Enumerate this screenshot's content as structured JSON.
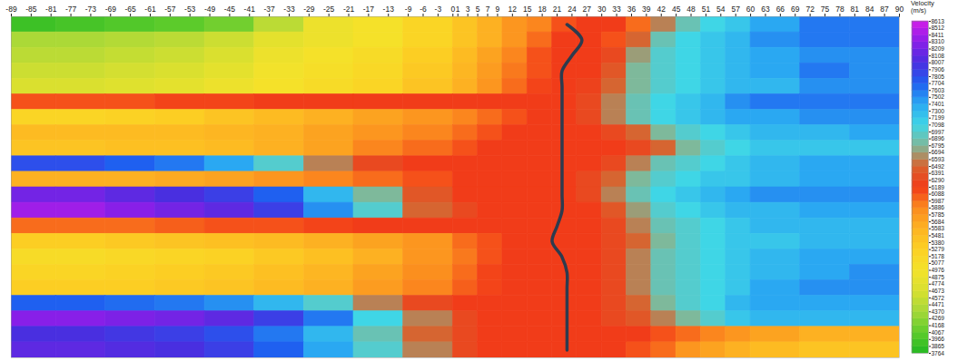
{
  "chart_data": {
    "type": "heatmap",
    "tick_labels": "x",
    "xlim": [
      -89,
      90
    ],
    "xticks": [
      -89,
      -85,
      -81,
      -77,
      -73,
      -69,
      -65,
      -61,
      -57,
      -53,
      -49,
      -45,
      -41,
      -37,
      -33,
      -29,
      -25,
      -21,
      -17,
      -13,
      -9,
      -6,
      -3,
      0,
      1,
      3,
      5,
      7,
      9,
      12,
      15,
      18,
      21,
      24,
      27,
      30,
      33,
      36,
      39,
      42,
      45,
      48,
      51,
      54,
      57,
      60,
      63,
      66,
      69,
      72,
      75,
      78,
      81,
      84,
      87,
      90
    ],
    "x_edges": [
      -89,
      -80,
      -70,
      -60,
      -50,
      -40,
      -30,
      -20,
      -10,
      0,
      5,
      10,
      15,
      20,
      25,
      30,
      35,
      40,
      45,
      50,
      55,
      60,
      70,
      80,
      90
    ],
    "velocity": [
      [
        3900,
        3950,
        4000,
        4050,
        4150,
        4500,
        4900,
        5000,
        5200,
        5400,
        5600,
        5800,
        5900,
        6100,
        6200,
        6200,
        6000,
        6600,
        6900,
        7100,
        7200,
        7400,
        7600,
        7600
      ],
      [
        4400,
        4400,
        4450,
        4500,
        4600,
        4800,
        4900,
        5000,
        5200,
        5400,
        5600,
        5800,
        6000,
        6200,
        6200,
        6100,
        6500,
        6900,
        7100,
        7200,
        7300,
        7500,
        7600,
        7600
      ],
      [
        4500,
        4500,
        4550,
        4600,
        4700,
        4900,
        5000,
        5100,
        5300,
        5500,
        5700,
        5900,
        6100,
        6200,
        6200,
        6300,
        6700,
        7000,
        7100,
        7200,
        7300,
        7400,
        7500,
        7500
      ],
      [
        4600,
        4600,
        4650,
        4700,
        4800,
        4950,
        5050,
        5150,
        5350,
        5550,
        5750,
        5950,
        6100,
        6200,
        6200,
        6400,
        6800,
        7000,
        7100,
        7200,
        7300,
        7400,
        7600,
        7500
      ],
      [
        4700,
        4700,
        4750,
        4800,
        4900,
        5000,
        5100,
        5200,
        5400,
        5600,
        5800,
        6000,
        6150,
        6200,
        6250,
        6500,
        6800,
        7000,
        7100,
        7200,
        7300,
        7300,
        7500,
        7500
      ],
      [
        6100,
        6100,
        6100,
        6150,
        6150,
        6200,
        6200,
        6200,
        6200,
        6200,
        6200,
        6200,
        6200,
        6200,
        6300,
        6600,
        6900,
        7100,
        7200,
        7300,
        7500,
        7600,
        7600,
        7600
      ],
      [
        5200,
        5200,
        5250,
        5300,
        5400,
        5500,
        5600,
        5700,
        5800,
        5900,
        6000,
        6100,
        6200,
        6200,
        6300,
        6600,
        6900,
        7100,
        7200,
        7300,
        7400,
        7400,
        7500,
        7500
      ],
      [
        5500,
        5500,
        5500,
        5500,
        5550,
        5600,
        5700,
        5800,
        5900,
        6000,
        6100,
        6200,
        6200,
        6200,
        6200,
        6300,
        6500,
        6800,
        7000,
        7100,
        7200,
        7300,
        7300,
        7400
      ],
      [
        5400,
        5400,
        5450,
        5450,
        5500,
        5600,
        5700,
        5900,
        6000,
        6100,
        6200,
        6200,
        6200,
        6200,
        6200,
        6200,
        6300,
        6500,
        6800,
        7000,
        7100,
        7200,
        7200,
        7200
      ],
      [
        7800,
        7800,
        7700,
        7600,
        7400,
        7000,
        6600,
        6300,
        6200,
        6200,
        6200,
        6200,
        6200,
        6200,
        6200,
        6300,
        6600,
        6900,
        7000,
        7100,
        7200,
        7300,
        7400,
        7400
      ],
      [
        5600,
        5600,
        5600,
        5650,
        5700,
        5800,
        5900,
        6000,
        6100,
        6200,
        6200,
        6200,
        6200,
        6200,
        6300,
        6500,
        6800,
        7000,
        7100,
        7200,
        7200,
        7300,
        7400,
        7400
      ],
      [
        8200,
        8200,
        8100,
        8000,
        7900,
        7700,
        7300,
        6800,
        6400,
        6200,
        6200,
        6200,
        6200,
        6200,
        6300,
        6600,
        6900,
        7100,
        7200,
        7300,
        7400,
        7500,
        7500,
        7500
      ],
      [
        8400,
        8400,
        8300,
        8200,
        8100,
        7900,
        7500,
        7000,
        6500,
        6300,
        6200,
        6200,
        6200,
        6200,
        6200,
        6400,
        6700,
        7000,
        7100,
        7200,
        7300,
        7300,
        7400,
        7400
      ],
      [
        6000,
        6000,
        6000,
        6050,
        6100,
        6100,
        6150,
        6200,
        6200,
        6200,
        6200,
        6200,
        6200,
        6200,
        6200,
        6300,
        6600,
        6900,
        7000,
        7100,
        7200,
        7300,
        7300,
        7300
      ],
      [
        5300,
        5300,
        5350,
        5400,
        5450,
        5500,
        5600,
        5700,
        5800,
        6000,
        6100,
        6200,
        6200,
        6200,
        6200,
        6300,
        6500,
        6800,
        7000,
        7100,
        7200,
        7200,
        7300,
        7300
      ],
      [
        5100,
        5100,
        5150,
        5200,
        5250,
        5350,
        5450,
        5600,
        5800,
        5950,
        6100,
        6200,
        6200,
        6200,
        6200,
        6300,
        6600,
        6900,
        7000,
        7100,
        7200,
        7300,
        7400,
        7400
      ],
      [
        5200,
        5200,
        5250,
        5300,
        5350,
        5450,
        5550,
        5700,
        5850,
        6000,
        6150,
        6200,
        6200,
        6200,
        6200,
        6300,
        6600,
        6900,
        7000,
        7100,
        7200,
        7300,
        7400,
        7500
      ],
      [
        5300,
        5300,
        5300,
        5350,
        5400,
        5500,
        5600,
        5750,
        5900,
        6050,
        6150,
        6200,
        6200,
        6200,
        6200,
        6300,
        6600,
        6900,
        7000,
        7100,
        7200,
        7400,
        7500,
        7500
      ],
      [
        7700,
        7700,
        7650,
        7600,
        7500,
        7300,
        7000,
        6600,
        6300,
        6200,
        6200,
        6200,
        6200,
        6200,
        6200,
        6300,
        6500,
        6800,
        7000,
        7100,
        7300,
        7400,
        7400,
        7400
      ],
      [
        8300,
        8300,
        8250,
        8200,
        8100,
        7900,
        7600,
        7100,
        6600,
        6300,
        6200,
        6200,
        6200,
        6200,
        6200,
        6300,
        6400,
        6600,
        6800,
        7000,
        7200,
        7300,
        7300,
        7300
      ],
      [
        8000,
        8000,
        7950,
        7900,
        7800,
        7600,
        7300,
        6900,
        6500,
        6300,
        6200,
        6200,
        6200,
        6200,
        6200,
        6200,
        6200,
        6100,
        6000,
        5900,
        5800,
        5700,
        5600,
        5600
      ],
      [
        8100,
        8100,
        8050,
        8000,
        7900,
        7700,
        7400,
        7000,
        6600,
        6300,
        6200,
        6200,
        6200,
        6200,
        6200,
        6200,
        6100,
        6000,
        5800,
        5700,
        5600,
        5500,
        5400,
        5400
      ]
    ],
    "line": {
      "type": "line",
      "color": "#2d3b4e",
      "values": [
        23,
        26,
        24,
        22,
        22,
        22,
        22,
        22,
        22,
        22,
        22,
        22,
        22,
        21,
        20,
        22,
        23,
        23,
        23,
        23,
        23,
        23
      ]
    },
    "colorbar": {
      "title": "Velocity (m/s)",
      "lim": [
        3764,
        8613
      ],
      "ticks": [
        3764,
        3865,
        3966,
        4067,
        4168,
        4269,
        4370,
        4471,
        4572,
        4673,
        4774,
        4875,
        4976,
        5077,
        5178,
        5279,
        5380,
        5481,
        5583,
        5684,
        5785,
        5886,
        5987,
        6088,
        6189,
        6290,
        6391,
        6492,
        6593,
        6694,
        6795,
        6896,
        6997,
        7098,
        7199,
        7300,
        7401,
        7502,
        7603,
        7704,
        7805,
        7906,
        8007,
        8108,
        8209,
        8310,
        8411,
        8512,
        8613
      ],
      "colors": [
        "#22b822",
        "#5fcc2c",
        "#a6d838",
        "#d8e030",
        "#f4e22a",
        "#fcd023",
        "#fdb322",
        "#fb8a1e",
        "#f23a18",
        "#d9632e",
        "#7fb89a",
        "#3fd6e6",
        "#2aa8f2",
        "#1f5ff0",
        "#4a2ee0",
        "#8a1ee8",
        "#d21ee8"
      ]
    }
  }
}
